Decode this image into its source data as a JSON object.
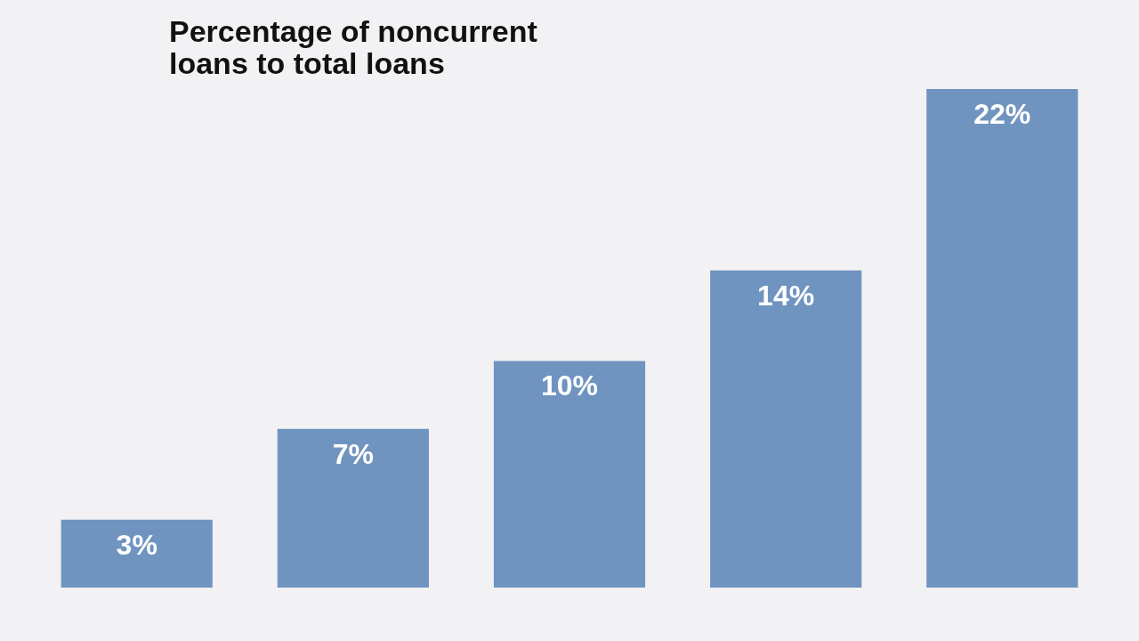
{
  "chart_data": {
    "type": "bar",
    "title": "Percentage of noncurrent\nloans to total loans",
    "categories": [
      null,
      null,
      null,
      null,
      null
    ],
    "values": [
      3,
      7,
      10,
      14,
      22
    ],
    "value_labels": [
      "3%",
      "7%",
      "10%",
      "14%",
      "22%"
    ],
    "color": "#7094c0"
  }
}
